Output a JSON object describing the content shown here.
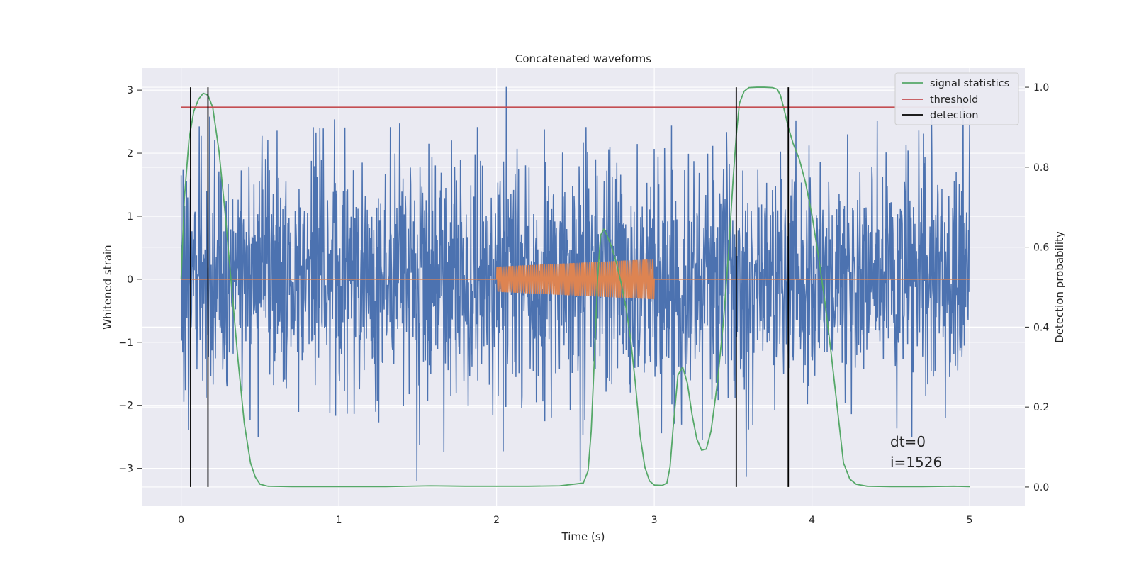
{
  "chart_data": {
    "type": "line",
    "title": "Concatenated waveforms",
    "xlabel": "Time (s)",
    "ylabel": "Whitened strain",
    "y2label": "Detection probability",
    "xlim": [
      -0.25,
      5.35
    ],
    "ylim": [
      -3.6,
      3.35
    ],
    "y2lim": [
      -0.048,
      1.048
    ],
    "xticks": [
      0,
      1,
      2,
      3,
      4,
      5
    ],
    "xtick_labels": [
      "0",
      "1",
      "2",
      "3",
      "4",
      "5"
    ],
    "yticks": [
      -3,
      -2,
      -1,
      0,
      1,
      2,
      3
    ],
    "ytick_labels": [
      "−3",
      "−2",
      "−1",
      "0",
      "1",
      "2",
      "3"
    ],
    "y2ticks": [
      0,
      0.2,
      0.4,
      0.6,
      0.8,
      1.0
    ],
    "y2tick_labels": [
      "0.0",
      "0.2",
      "0.4",
      "0.6",
      "0.8",
      "1.0"
    ],
    "grid": true,
    "legend_position": "top-right",
    "background": "#eaeaf2",
    "noise": {
      "axis": "left",
      "color": "#4c72b0",
      "x_range": [
        0,
        5
      ],
      "amplitude_sd": 0.95,
      "y_extent": [
        -3.2,
        3.05
      ],
      "samples": 2048
    },
    "injected_signal": {
      "axis": "left",
      "color": "#dd8452",
      "x_range": [
        0,
        5
      ],
      "active_range": [
        2.0,
        3.0
      ],
      "amplitude_range": [
        0.2,
        0.32
      ],
      "cycles": 80
    },
    "series": [
      {
        "name": "signal statistics",
        "axis": "right",
        "color": "#55a868",
        "x": [
          0,
          0.02,
          0.05,
          0.08,
          0.11,
          0.14,
          0.17,
          0.2,
          0.24,
          0.28,
          0.32,
          0.36,
          0.4,
          0.44,
          0.47,
          0.5,
          0.55,
          0.7,
          1.0,
          1.3,
          1.58,
          1.8,
          2.0,
          2.2,
          2.4,
          2.55,
          2.58,
          2.6,
          2.62,
          2.64,
          2.66,
          2.68,
          2.7,
          2.73,
          2.76,
          2.79,
          2.82,
          2.85,
          2.88,
          2.91,
          2.94,
          2.97,
          3.0,
          3.05,
          3.08,
          3.1,
          3.12,
          3.15,
          3.18,
          3.21,
          3.24,
          3.27,
          3.3,
          3.33,
          3.36,
          3.4,
          3.44,
          3.47,
          3.5,
          3.52,
          3.54,
          3.57,
          3.6,
          3.65,
          3.7,
          3.75,
          3.78,
          3.8,
          3.82,
          3.85,
          3.88,
          3.92,
          3.96,
          4.0,
          4.04,
          4.08,
          4.12,
          4.16,
          4.2,
          4.24,
          4.28,
          4.35,
          4.5,
          4.7,
          4.9,
          5.0
        ],
        "y": [
          0.52,
          0.72,
          0.87,
          0.94,
          0.97,
          0.985,
          0.98,
          0.95,
          0.84,
          0.68,
          0.5,
          0.32,
          0.16,
          0.06,
          0.025,
          0.007,
          0.002,
          0.001,
          0.001,
          0.001,
          0.003,
          0.002,
          0.002,
          0.002,
          0.003,
          0.01,
          0.04,
          0.14,
          0.32,
          0.52,
          0.63,
          0.645,
          0.63,
          0.6,
          0.56,
          0.51,
          0.45,
          0.37,
          0.26,
          0.13,
          0.05,
          0.015,
          0.005,
          0.004,
          0.01,
          0.05,
          0.15,
          0.28,
          0.3,
          0.26,
          0.18,
          0.12,
          0.092,
          0.095,
          0.14,
          0.26,
          0.42,
          0.58,
          0.77,
          0.88,
          0.96,
          0.99,
          0.999,
          1.0,
          1.0,
          0.999,
          0.995,
          0.98,
          0.95,
          0.9,
          0.86,
          0.82,
          0.76,
          0.68,
          0.58,
          0.47,
          0.34,
          0.2,
          0.06,
          0.02,
          0.007,
          0.002,
          0.001,
          0.001,
          0.002,
          0.001
        ]
      },
      {
        "name": "threshold",
        "axis": "right",
        "color": "#c44e52",
        "x": [
          0,
          5
        ],
        "y": [
          0.95,
          0.95
        ]
      },
      {
        "name": "detection",
        "axis": "right",
        "color": "#000000",
        "type": "vlines",
        "x": [
          0.06,
          0.17,
          3.52,
          3.85
        ],
        "y_range": [
          0,
          1.0
        ]
      }
    ],
    "annotations": [
      {
        "text": "dt=0",
        "x": 4.5,
        "y": -2.62,
        "axis": "left"
      },
      {
        "text": "i=1526",
        "x": 4.5,
        "y": -2.95,
        "axis": "left"
      }
    ]
  }
}
